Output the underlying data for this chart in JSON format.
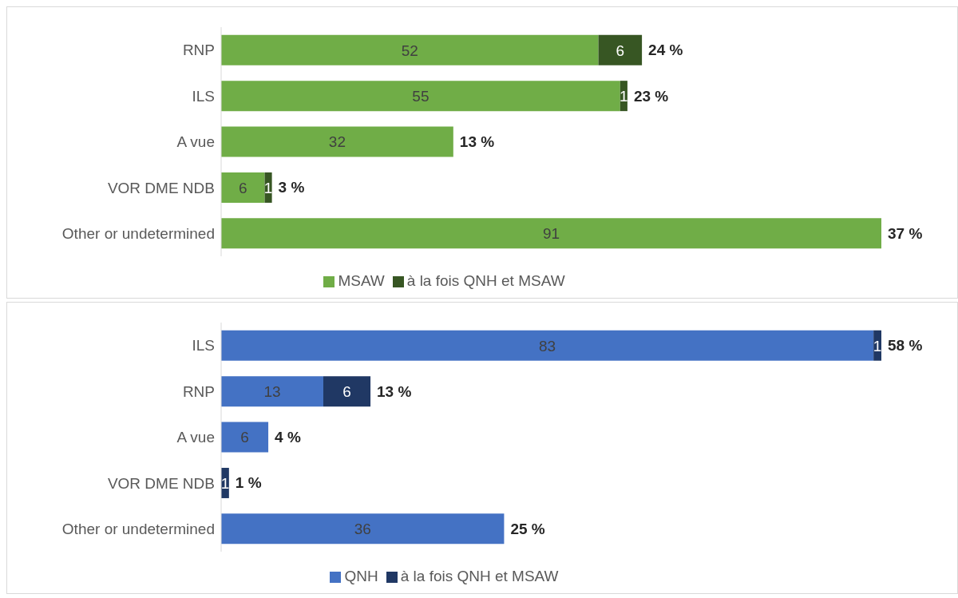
{
  "chart_data": [
    {
      "type": "bar",
      "orientation": "horizontal",
      "stacked": true,
      "data_labels": true,
      "legend": "bottom",
      "categories": [
        "RNP",
        "ILS",
        "A vue",
        "VOR DME NDB",
        "Other or undetermined"
      ],
      "series": [
        {
          "name": "MSAW",
          "color": "#70ad47",
          "values": [
            52,
            55,
            32,
            6,
            91
          ]
        },
        {
          "name": "à la fois QNH et MSAW",
          "color": "#375623",
          "values": [
            6,
            1,
            null,
            1,
            null
          ]
        }
      ],
      "annotations": [
        {
          "text": "24 %",
          "x": 58,
          "y": "RNP"
        },
        {
          "text": "23 %",
          "x": 56,
          "y": "ILS"
        },
        {
          "text": "13 %",
          "x": 32,
          "y": "A vue"
        },
        {
          "text": "3 %",
          "x": 7,
          "y": "VOR DME NDB"
        },
        {
          "text": "37 %",
          "x": 91,
          "y": "Other or undetermined"
        }
      ]
    },
    {
      "type": "bar",
      "orientation": "horizontal",
      "stacked": true,
      "data_labels": true,
      "legend": "bottom",
      "categories": [
        "ILS",
        "RNP",
        "A vue",
        "VOR DME NDB",
        "Other or undetermined"
      ],
      "series": [
        {
          "name": "QNH",
          "color": "#4472c4",
          "values": [
            83,
            13,
            6,
            null,
            36
          ]
        },
        {
          "name": "à la fois QNH et MSAW",
          "color": "#203864",
          "values": [
            1,
            6,
            null,
            1,
            null
          ]
        }
      ],
      "annotations": [
        {
          "text": "58 %",
          "x": 84,
          "y": "ILS"
        },
        {
          "text": "13 %",
          "x": 19,
          "y": "RNP"
        },
        {
          "text": "4 %",
          "x": 6,
          "y": "A vue"
        },
        {
          "text": "1 %",
          "x": 1,
          "y": "VOR DME NDB"
        },
        {
          "text": "25 %",
          "x": 36,
          "y": "Other or undetermined"
        }
      ]
    }
  ]
}
